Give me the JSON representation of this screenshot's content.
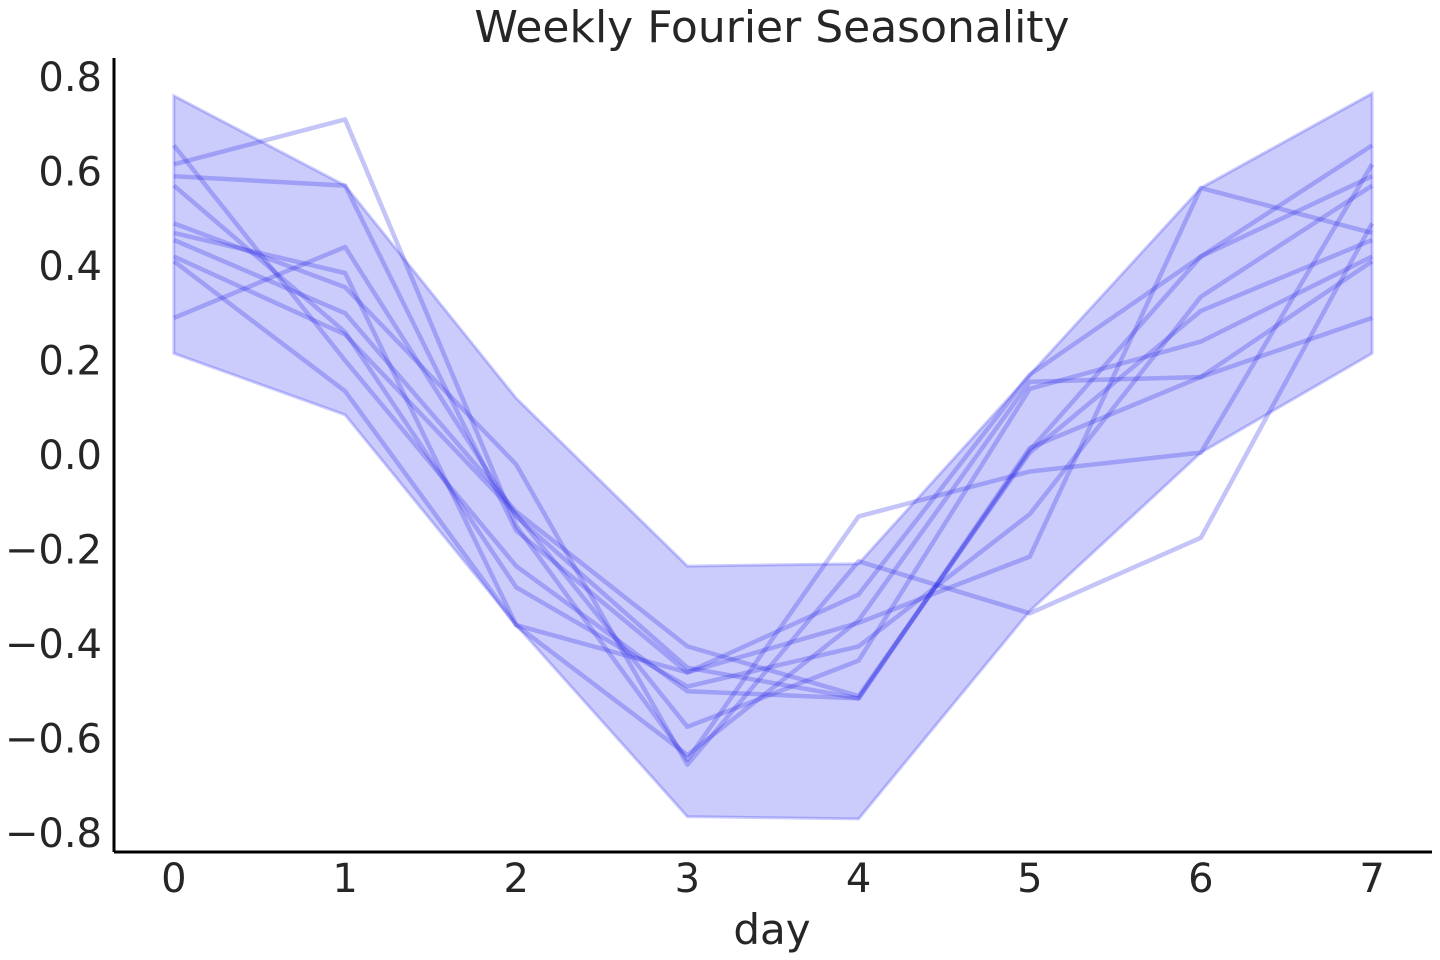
{
  "chart_data": {
    "type": "line",
    "title": "Weekly Fourier Seasonality",
    "xlabel": "day",
    "ylabel": "",
    "x": [
      0,
      1,
      2,
      3,
      4,
      5,
      6,
      7
    ],
    "x_ticks": [
      "0",
      "1",
      "2",
      "3",
      "4",
      "5",
      "6",
      "7"
    ],
    "y_ticks": [
      "0.8",
      "0.6",
      "0.4",
      "0.2",
      "0.0",
      "−0.2",
      "−0.4",
      "−0.6",
      "−0.8"
    ],
    "xlim": [
      -0.35,
      7.35
    ],
    "ylim": [
      -0.84,
      0.84
    ],
    "grid": false,
    "legend": "none",
    "band": {
      "upper": [
        0.76,
        0.57,
        0.12,
        -0.235,
        -0.23,
        0.17,
        0.565,
        0.765
      ],
      "lower": [
        0.215,
        0.085,
        -0.36,
        -0.765,
        -0.77,
        -0.33,
        0.005,
        0.215
      ]
    },
    "series": [
      {
        "values": [
          0.615,
          0.71,
          -0.15,
          -0.645,
          -0.13,
          -0.035,
          0.005,
          0.615
        ]
      },
      {
        "values": [
          0.59,
          0.57,
          -0.16,
          -0.46,
          -0.295,
          0.17,
          0.42,
          0.59
        ]
      },
      {
        "values": [
          0.57,
          0.26,
          -0.28,
          -0.49,
          -0.405,
          -0.125,
          0.335,
          0.57
        ]
      },
      {
        "values": [
          0.655,
          0.2,
          -0.235,
          -0.5,
          -0.515,
          0.01,
          0.42,
          0.655
        ]
      },
      {
        "values": [
          0.49,
          0.355,
          -0.02,
          -0.655,
          -0.225,
          -0.335,
          -0.175,
          0.49
        ]
      },
      {
        "values": [
          0.47,
          0.385,
          -0.36,
          -0.46,
          -0.355,
          -0.215,
          0.565,
          0.47
        ]
      },
      {
        "values": [
          0.455,
          0.3,
          -0.12,
          -0.405,
          -0.51,
          0.005,
          0.305,
          0.455
        ]
      },
      {
        "values": [
          0.42,
          0.255,
          -0.125,
          -0.575,
          -0.435,
          0.14,
          0.24,
          0.42
        ]
      },
      {
        "values": [
          0.41,
          0.135,
          -0.36,
          -0.635,
          -0.35,
          0.155,
          0.165,
          0.41
        ]
      },
      {
        "values": [
          0.29,
          0.44,
          -0.13,
          -0.45,
          -0.515,
          0.015,
          0.165,
          0.29
        ]
      }
    ],
    "colors": {
      "band": "#0000ee",
      "line": "#2a2ae6",
      "axis": "#000000",
      "text": "#262626"
    }
  }
}
